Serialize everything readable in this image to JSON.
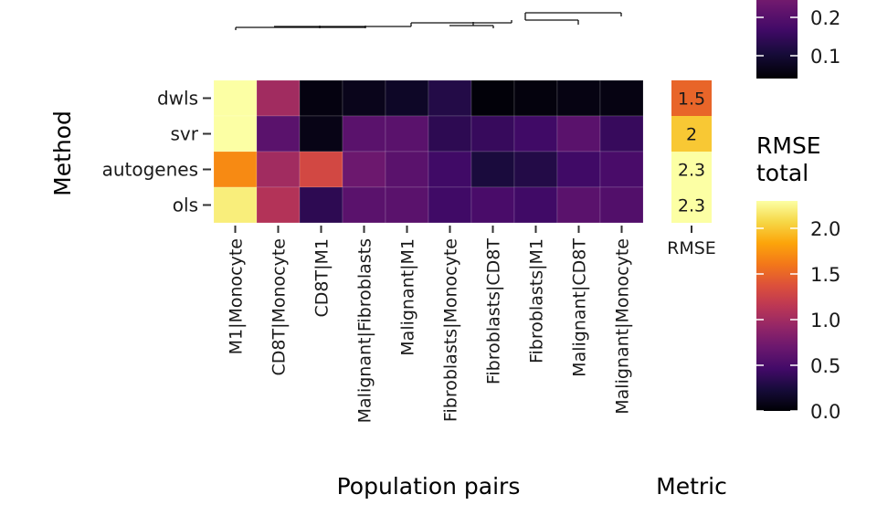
{
  "chart_data": {
    "type": "heatmap",
    "rows": [
      "dwls",
      "svr",
      "autogenes",
      "ols"
    ],
    "columns": [
      "M1|Monocyte",
      "CD8T|Monocyte",
      "CD8T|M1",
      "Malignant|Fibroblasts",
      "Malignant|M1",
      "Fibroblasts|Monocyte",
      "Fibroblasts|CD8T",
      "Fibroblasts|M1",
      "Malignant|CD8T",
      "Malignant|Monocyte"
    ],
    "values": [
      [
        2.3,
        1.0,
        0.05,
        0.1,
        0.15,
        0.3,
        0.02,
        0.04,
        0.06,
        0.06
      ],
      [
        2.3,
        0.6,
        0.08,
        0.6,
        0.6,
        0.35,
        0.4,
        0.45,
        0.6,
        0.4
      ],
      [
        1.7,
        1.0,
        1.3,
        0.7,
        0.6,
        0.45,
        0.25,
        0.3,
        0.45,
        0.5
      ],
      [
        2.2,
        1.1,
        0.35,
        0.6,
        0.6,
        0.45,
        0.5,
        0.45,
        0.6,
        0.55
      ]
    ],
    "xlabel": "Population pairs",
    "ylabel": "Method",
    "metric": {
      "xlabel": "Metric",
      "column": "RMSE",
      "values": [
        1.5,
        2,
        2.3,
        2.3
      ],
      "labels": [
        "1.5",
        "2",
        "2.3",
        "2.3"
      ]
    },
    "legend_total": {
      "title_line1": "RMSE",
      "title_line2": "total",
      "range": [
        0,
        2.3
      ],
      "ticks": [
        0.0,
        0.5,
        1.0,
        1.5,
        2.0
      ],
      "tick_labels": [
        "0.0",
        "0.5",
        "1.0",
        "1.5",
        "2.0"
      ]
    },
    "legend_pairs": {
      "range": [
        0.05,
        0.3
      ],
      "tick_labels": [
        "0.1",
        "0.2"
      ]
    }
  }
}
